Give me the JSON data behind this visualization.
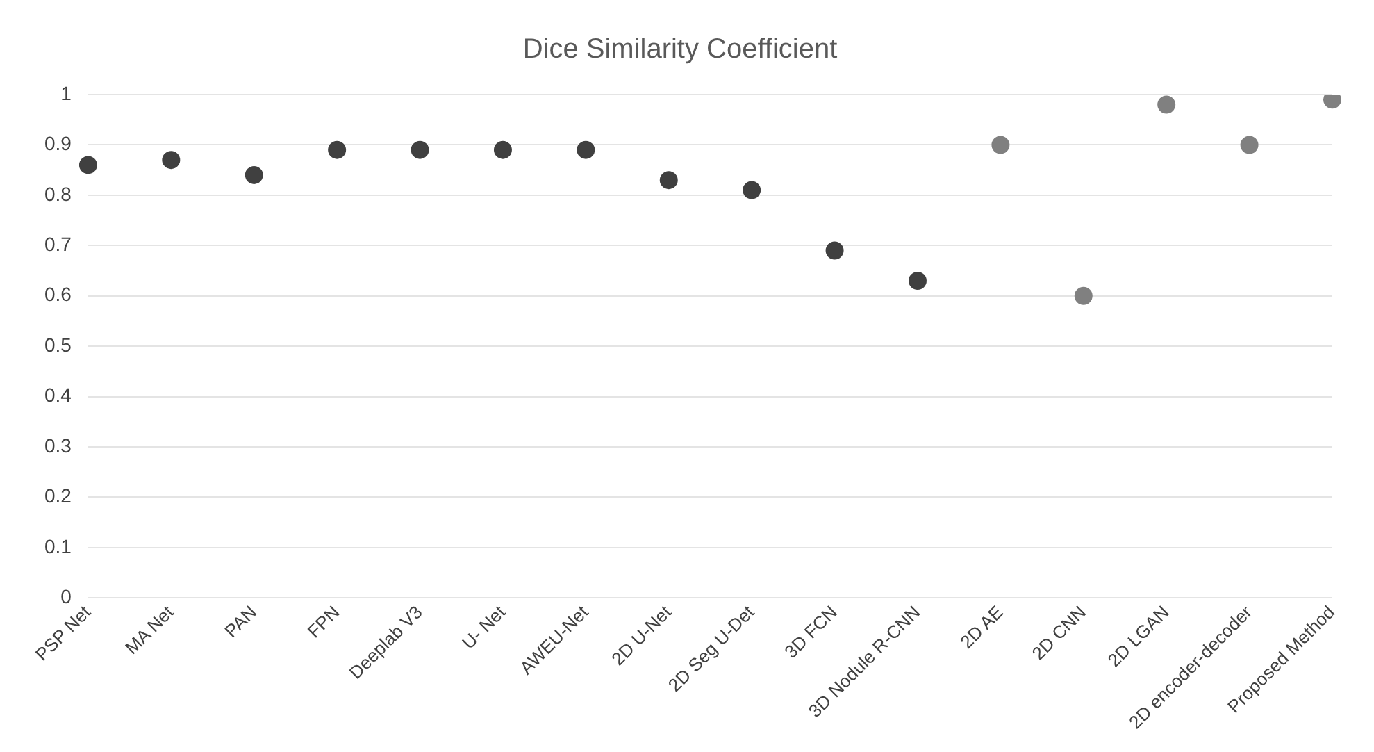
{
  "chart_data": {
    "type": "scatter",
    "title": "Dice Similarity Coefficient",
    "categories": [
      "PSP Net",
      "MA Net",
      "PAN",
      "FPN",
      "Deeplab V3",
      "U- Net",
      "AWEU-Net",
      "2D U-Net",
      "2D Seg U-Det",
      "3D FCN",
      "3D Nodule R-CNN",
      "2D AE",
      "2D CNN",
      "2D LGAN",
      "2D encoder-decoder",
      "Proposed Method"
    ],
    "values": [
      0.86,
      0.87,
      0.84,
      0.89,
      0.89,
      0.89,
      0.89,
      0.83,
      0.81,
      0.69,
      0.63,
      0.9,
      0.6,
      0.98,
      0.9,
      0.99
    ],
    "colors": [
      "#404040",
      "#404040",
      "#404040",
      "#404040",
      "#404040",
      "#404040",
      "#404040",
      "#404040",
      "#404040",
      "#404040",
      "#404040",
      "#808080",
      "#808080",
      "#808080",
      "#808080",
      "#808080"
    ],
    "ylim": [
      0,
      1
    ],
    "yticks": [
      0,
      0.1,
      0.2,
      0.3,
      0.4,
      0.5,
      0.6,
      0.7,
      0.8,
      0.9,
      1
    ],
    "grid": "y",
    "legend": false,
    "marker": "circle"
  }
}
